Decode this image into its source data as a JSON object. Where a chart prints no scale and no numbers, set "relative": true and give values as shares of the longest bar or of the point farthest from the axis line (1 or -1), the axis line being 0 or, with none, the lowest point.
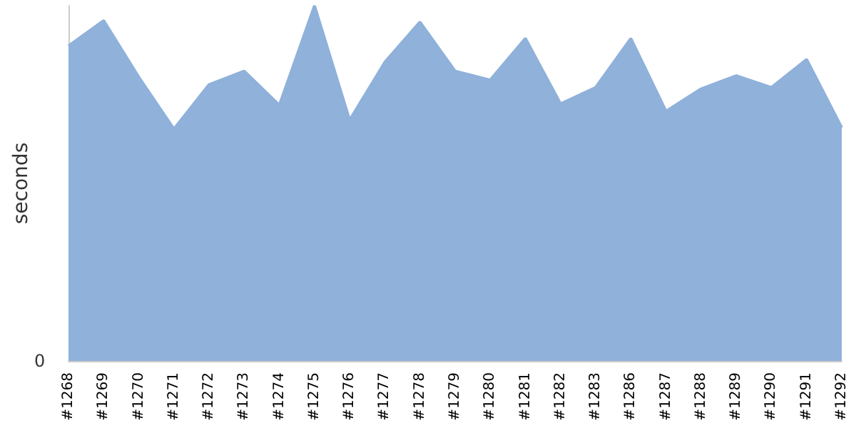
{
  "chart_data": {
    "type": "area",
    "ylabel": "seconds",
    "relative": true,
    "annotations": [
      "0"
    ],
    "grid": false,
    "categories": [
      "#1268",
      "#1269",
      "#1270",
      "#1271",
      "#1272",
      "#1273",
      "#1274",
      "#1275",
      "#1276",
      "#1277",
      "#1278",
      "#1279",
      "#1280",
      "#1281",
      "#1282",
      "#1283",
      "#1286",
      "#1287",
      "#1288",
      "#1289",
      "#1290",
      "#1291",
      "#1292"
    ],
    "series": [
      {
        "color": "#8fb1da",
        "values": [
          0.887,
          0.958,
          0.799,
          0.653,
          0.778,
          0.816,
          0.72,
          1,
          0.678,
          0.841,
          0.954,
          0.816,
          0.791,
          0.908,
          0.724,
          0.77,
          0.908,
          0.703,
          0.766,
          0.803,
          0.77,
          0.849,
          0.657
        ]
      }
    ]
  }
}
